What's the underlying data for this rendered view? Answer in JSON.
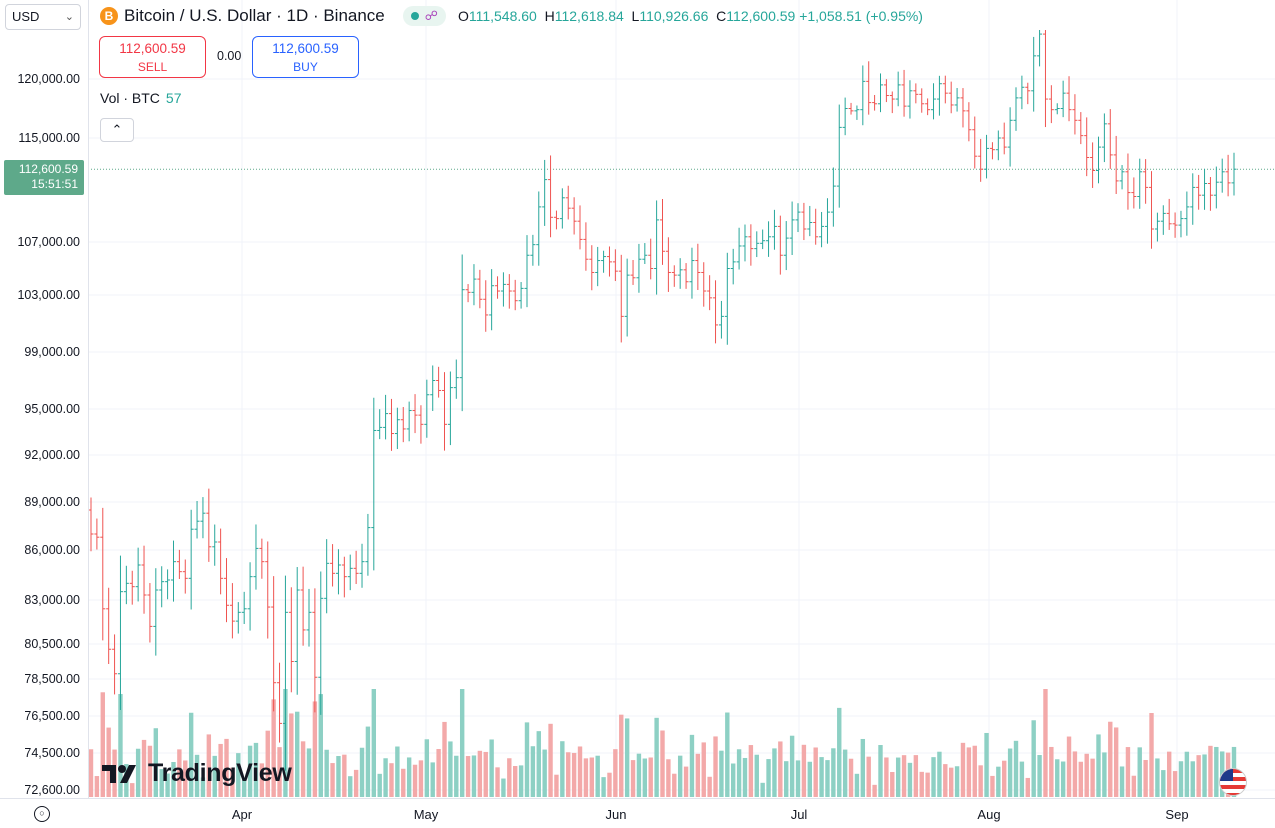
{
  "header": {
    "symbol_logo": "B",
    "title": "Bitcoin / U.S. Dollar · 1D · Binance",
    "ohlc": {
      "o_label": "O",
      "o": "111,548.60",
      "h_label": "H",
      "h": "112,618.84",
      "l_label": "L",
      "l": "110,926.66",
      "c_label": "C",
      "c": "112,600.59",
      "change": "+1,058.51 (+0.95%)"
    }
  },
  "currency": {
    "value": "USD"
  },
  "trade": {
    "sell_price": "112,600.59",
    "sell_label": "SELL",
    "spread": "0.00",
    "buy_price": "112,600.59",
    "buy_label": "BUY"
  },
  "volume_legend": {
    "label": "Vol · BTC",
    "value": "57"
  },
  "last_price": {
    "price": "112,600.59",
    "countdown": "15:51:51"
  },
  "watermark": "TradingView",
  "colors": {
    "up": "#26a69a",
    "down": "#ef5350",
    "vol_up": "#8dd0c4",
    "vol_down": "#f3a9a9",
    "grid": "#f0f3fa"
  },
  "chart_data": {
    "type": "ohlc",
    "title": "Bitcoin / U.S. Dollar · 1D · Binance",
    "y_ticks": [
      120000,
      115000,
      112600.59,
      107000,
      103000,
      99000,
      95000,
      92000,
      89000,
      86000,
      83000,
      80500,
      78500,
      76500,
      74500,
      72600
    ],
    "y_tick_labels": [
      "120,000.00",
      "115,000.00",
      "112,600.59",
      "107,000.00",
      "103,000.00",
      "99,000.00",
      "95,000.00",
      "92,000.00",
      "89,000.00",
      "86,000.00",
      "83,000.00",
      "80,500.00",
      "78,500.00",
      "76,500.00",
      "74,500.00",
      "72,600.00"
    ],
    "x_labels": [
      "Apr",
      "May",
      "Jun",
      "Jul",
      "Aug",
      "Sep"
    ],
    "close": [
      87000,
      86800,
      82500,
      80200,
      78800,
      83500,
      84000,
      83800,
      85100,
      83300,
      81500,
      83600,
      84100,
      84200,
      85300,
      84700,
      84300,
      87300,
      87800,
      88300,
      86200,
      86500,
      84300,
      82700,
      81800,
      82300,
      82500,
      84400,
      86100,
      85300,
      82600,
      78300,
      76100,
      82300,
      79500,
      83600,
      81300,
      82300,
      78600,
      83100,
      85200,
      84600,
      85100,
      84400,
      84900,
      84600,
      85300,
      87400,
      93600,
      93800,
      94700,
      93400,
      94300,
      93700,
      94900,
      94600,
      94000,
      96000,
      97000,
      96300,
      94000,
      96500,
      97200,
      103400,
      103200,
      104200,
      102700,
      101600,
      103700,
      103300,
      103800,
      103300,
      102600,
      103500,
      106000,
      106800,
      109700,
      111800,
      108900,
      108800,
      110400,
      109600,
      108600,
      107200,
      105700,
      104700,
      105600,
      105900,
      105500,
      104800,
      101500,
      104500,
      104300,
      105700,
      106000,
      105000,
      108700,
      106300,
      104700,
      104500,
      104900,
      104000,
      105600,
      104700,
      103300,
      102800,
      100900,
      101500,
      105000,
      105500,
      106700,
      107400,
      106500,
      106900,
      107100,
      107400,
      108200,
      106000,
      107300,
      108700,
      109300,
      108000,
      108500,
      107400,
      108200,
      109300,
      111300,
      115900,
      117500,
      117300,
      117400,
      119800,
      118000,
      117900,
      119500,
      118600,
      118300,
      119500,
      117700,
      119000,
      118700,
      117900,
      117400,
      118300,
      119600,
      118800,
      117800,
      118400,
      117300,
      115700,
      113600,
      112600,
      114200,
      114100,
      115000,
      114300,
      116500,
      118400,
      119300,
      119000,
      121700,
      123300,
      118300,
      117400,
      117500,
      118800,
      117400,
      116500,
      115200,
      113500,
      112500,
      114300,
      116200,
      113700,
      111700,
      112400,
      110800,
      110500,
      112400,
      111200,
      108000,
      108600,
      109200,
      108400,
      108300,
      108800,
      109700,
      111200,
      110600,
      111500,
      110600,
      111600,
      112400,
      111548,
      112600
    ],
    "ylim": [
      72600,
      123600
    ]
  }
}
